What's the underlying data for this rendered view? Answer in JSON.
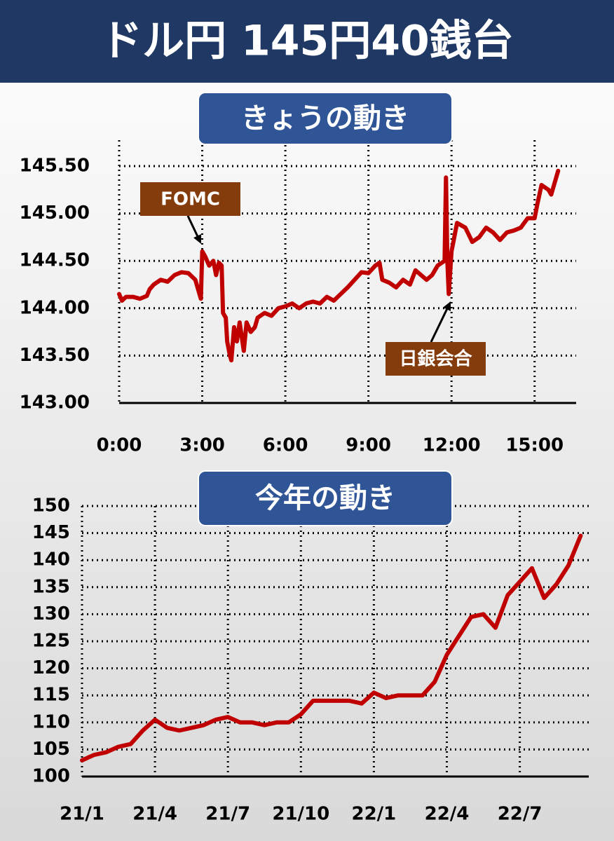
{
  "header": {
    "title": "ドル円 145円40銭台"
  },
  "chart_data": [
    {
      "type": "line",
      "title": "きょうの動き",
      "color": "#c00000",
      "grid": true,
      "x": [
        0,
        0.1,
        0.25,
        0.5,
        0.75,
        1,
        1.1,
        1.25,
        1.5,
        1.75,
        2,
        2.25,
        2.5,
        2.75,
        2.85,
        2.95,
        3,
        3.1,
        3.25,
        3.4,
        3.5,
        3.6,
        3.7,
        3.75,
        3.85,
        3.9,
        4,
        4.05,
        4.15,
        4.25,
        4.35,
        4.5,
        4.6,
        4.75,
        4.9,
        5,
        5.25,
        5.5,
        5.75,
        6,
        6.25,
        6.5,
        6.75,
        7,
        7.25,
        7.5,
        7.75,
        8,
        8.25,
        8.5,
        8.75,
        9,
        9.25,
        9.4,
        9.5,
        9.75,
        10,
        10.25,
        10.5,
        10.7,
        10.9,
        11.1,
        11.3,
        11.5,
        11.75,
        11.8,
        11.85,
        11.9,
        12,
        12.2,
        12.5,
        12.75,
        13,
        13.25,
        13.5,
        13.75,
        14,
        14.25,
        14.5,
        14.75,
        15,
        15.1,
        15.25,
        15.5,
        15.6,
        15.75,
        15.85
      ],
      "values": [
        144.15,
        144.08,
        144.12,
        144.12,
        144.1,
        144.13,
        144.2,
        144.25,
        144.3,
        144.28,
        144.35,
        144.38,
        144.37,
        144.3,
        144.2,
        144.1,
        144.6,
        144.55,
        144.45,
        144.5,
        144.35,
        144.48,
        144.45,
        143.95,
        143.9,
        143.65,
        143.5,
        143.45,
        143.8,
        143.65,
        143.85,
        143.55,
        143.85,
        143.75,
        143.8,
        143.9,
        143.95,
        143.92,
        144,
        144.02,
        144.05,
        144,
        144.05,
        144.07,
        144.05,
        144.12,
        144.08,
        144.15,
        144.22,
        144.3,
        144.38,
        144.37,
        144.45,
        144.48,
        144.3,
        144.27,
        144.22,
        144.3,
        144.25,
        144.4,
        144.35,
        144.3,
        144.35,
        144.45,
        144.5,
        145.38,
        144.5,
        144.15,
        144.6,
        144.9,
        144.85,
        144.7,
        144.75,
        144.85,
        144.8,
        144.72,
        144.8,
        144.82,
        144.85,
        144.95,
        144.95,
        145.1,
        145.3,
        145.25,
        145.2,
        145.35,
        145.45
      ],
      "xlim": [
        0,
        16.5
      ],
      "xticks": [
        {
          "value": 0,
          "label": "0:00"
        },
        {
          "value": 3,
          "label": "3:00"
        },
        {
          "value": 6,
          "label": "6:00"
        },
        {
          "value": 9,
          "label": "9:00"
        },
        {
          "value": 12,
          "label": "12:00"
        },
        {
          "value": 15,
          "label": "15:00"
        }
      ],
      "ylim": [
        143,
        145.5
      ],
      "yticks": [
        {
          "value": 143,
          "label": "143.00"
        },
        {
          "value": 143.5,
          "label": "143.50"
        },
        {
          "value": 144,
          "label": "144.00"
        },
        {
          "value": 144.5,
          "label": "144.50"
        },
        {
          "value": 145,
          "label": "145.00"
        },
        {
          "value": 145.5,
          "label": "145.50"
        }
      ],
      "annotations": [
        "FOMC",
        "日銀会合"
      ]
    },
    {
      "type": "line",
      "title": "今年の動き",
      "color": "#c00000",
      "grid": true,
      "categories": [
        "21/1",
        null,
        null,
        null,
        null,
        null,
        "21/4",
        null,
        null,
        null,
        null,
        null,
        "21/7",
        null,
        null,
        null,
        null,
        null,
        "21/10",
        null,
        null,
        null,
        null,
        null,
        "22/1",
        null,
        null,
        null,
        null,
        null,
        "22/4",
        null,
        null,
        null,
        null,
        null,
        "22/7",
        null,
        null,
        null,
        null,
        null
      ],
      "values": [
        103,
        104,
        104.5,
        105.5,
        106,
        108.5,
        110.5,
        109,
        108.5,
        109,
        109.5,
        110.5,
        111,
        110,
        110,
        109.5,
        110,
        110,
        111.5,
        114,
        114,
        114,
        114,
        113.5,
        115.5,
        114.5,
        115,
        115,
        115,
        117.5,
        122.5,
        126,
        129.5,
        130,
        127.5,
        133.5,
        136,
        138.5,
        133,
        135.5,
        139,
        144.5
      ],
      "ylim": [
        100,
        150
      ],
      "yticks": [
        100,
        105,
        110,
        115,
        120,
        125,
        130,
        135,
        140,
        145,
        150
      ]
    }
  ]
}
